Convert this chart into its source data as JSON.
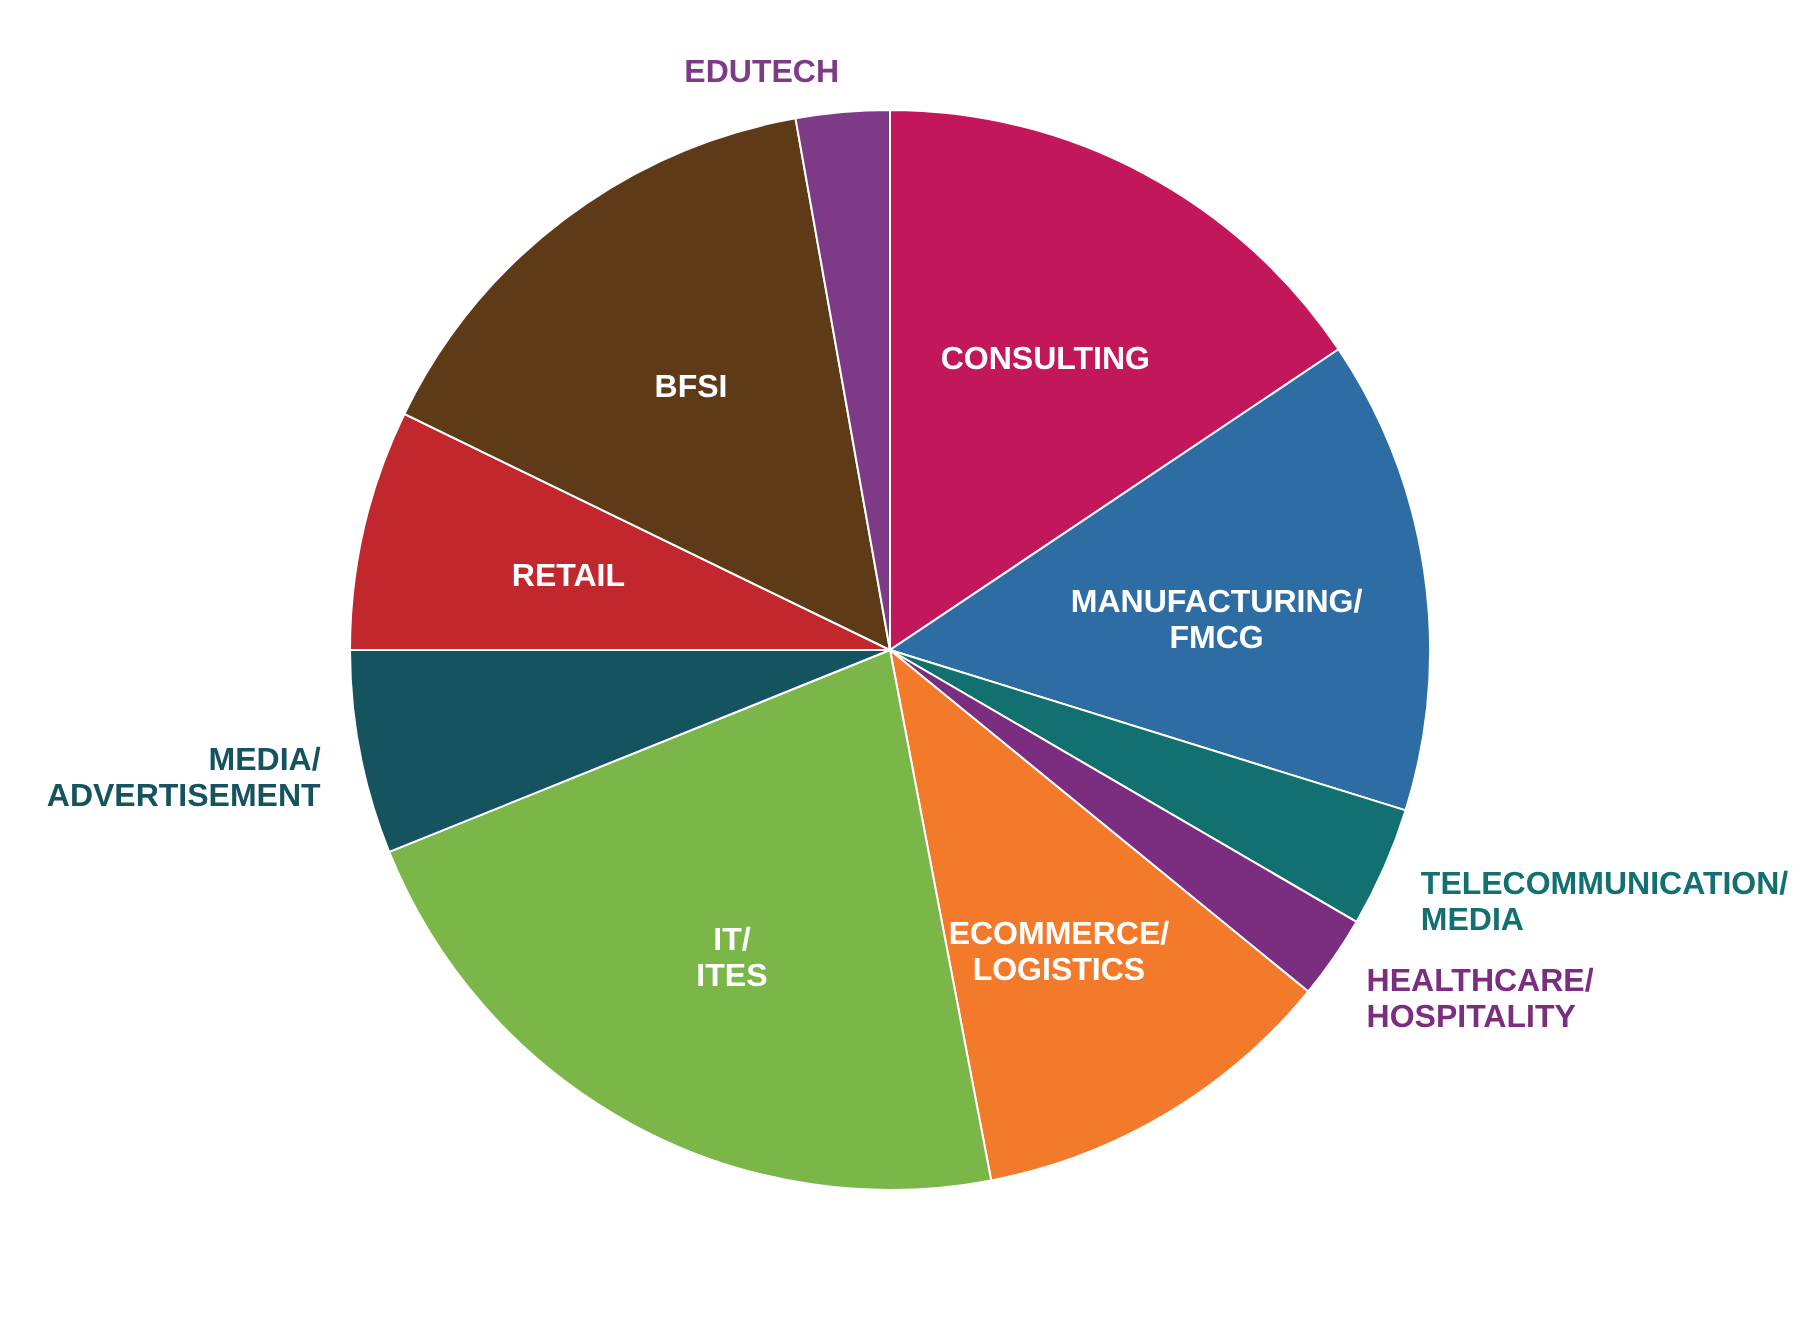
{
  "chart_data": {
    "type": "pie",
    "categories": [
      "CONSULTING",
      "MANUFACTURING/FMCG",
      "TELECOMMUNICATION/MEDIA",
      "HEALTHCARE/HOSPITALITY",
      "ECOMMERCE/LOGISTICS",
      "IT/ITES",
      "MEDIA/ADVERTISEMENT",
      "RETAIL",
      "BFSI",
      "EDUTECH"
    ],
    "values": [
      15.6,
      14.2,
      3.6,
      2.5,
      11.1,
      21.9,
      6.1,
      7.2,
      15.0,
      2.8
    ],
    "colors": [
      "#c2185b",
      "#2e6da4",
      "#137070",
      "#7b2d7f",
      "#f37a2a",
      "#7ab648",
      "#15535e",
      "#c1272d",
      "#5e3a17",
      "#7d3a87"
    ],
    "legend": false
  }
}
